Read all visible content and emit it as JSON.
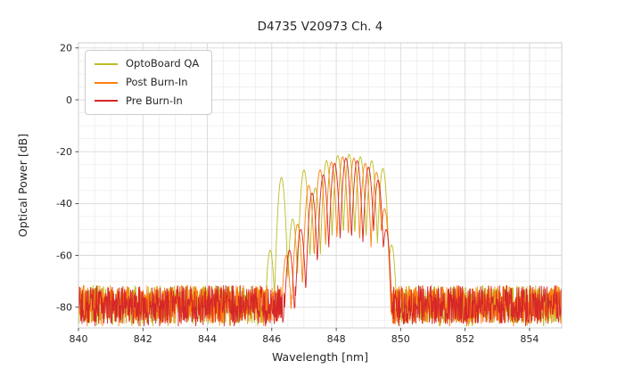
{
  "background_color": "#ffffff",
  "chart_data": {
    "type": "line",
    "title": "D4735 V20973 Ch. 4",
    "xlabel": "Wavelength [nm]",
    "ylabel": "Optical Power [dB]",
    "xlim": [
      840,
      855
    ],
    "ylim": [
      -88,
      22
    ],
    "xticks": [
      840,
      842,
      844,
      846,
      848,
      850,
      852,
      854
    ],
    "yticks": [
      20,
      0,
      -20,
      -40,
      -60,
      -80
    ],
    "grid": {
      "minor_x_step_nm": 0.5,
      "minor_y_step_db": 5,
      "major_color": "#d9d9d9",
      "minor_color": "#ebebeb",
      "border_color": "#cfcfcf"
    },
    "legend_position": "upper left",
    "tick_color": "#262626",
    "noise_floor": {
      "mean_db": -79,
      "spread_db": 7.5
    },
    "mode_parabola_coeff": 1000,
    "sample_step_nm": 0.01,
    "series": [
      {
        "name": "OptoBoard QA",
        "color": "#bcbd22",
        "modes": [
          [
            845.95,
            -58
          ],
          [
            846.3,
            -30
          ],
          [
            846.65,
            -46
          ],
          [
            847.0,
            -27
          ],
          [
            847.35,
            -34
          ],
          [
            847.7,
            -23.5
          ],
          [
            848.05,
            -21.5
          ],
          [
            848.4,
            -21
          ],
          [
            848.75,
            -22
          ],
          [
            849.1,
            -23.5
          ],
          [
            849.45,
            -26.5
          ],
          [
            849.72,
            -56
          ]
        ]
      },
      {
        "name": "Post Burn-In",
        "color": "#ff7f0e",
        "modes": [
          [
            846.45,
            -60
          ],
          [
            846.8,
            -48
          ],
          [
            847.15,
            -33
          ],
          [
            847.5,
            -27
          ],
          [
            847.85,
            -24
          ],
          [
            848.2,
            -22
          ],
          [
            848.55,
            -22.5
          ],
          [
            848.9,
            -24.5
          ],
          [
            849.25,
            -28
          ],
          [
            849.5,
            -42
          ]
        ]
      },
      {
        "name": "Pre Burn-In",
        "color": "#d62728",
        "modes": [
          [
            846.55,
            -58
          ],
          [
            846.9,
            -50
          ],
          [
            847.25,
            -36
          ],
          [
            847.6,
            -29
          ],
          [
            847.95,
            -24.5
          ],
          [
            848.3,
            -22.5
          ],
          [
            848.65,
            -23.5
          ],
          [
            849.0,
            -26
          ],
          [
            849.3,
            -31
          ],
          [
            849.55,
            -50
          ]
        ]
      }
    ]
  }
}
